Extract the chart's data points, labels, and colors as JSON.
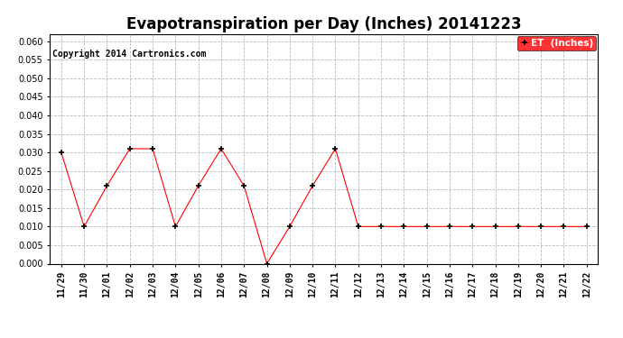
{
  "title": "Evapotranspiration per Day (Inches) 20141223",
  "copyright_text": "Copyright 2014 Cartronics.com",
  "legend_label": "ET  (Inches)",
  "legend_bg": "#ff0000",
  "legend_text_color": "#ffffff",
  "x_labels": [
    "11/29",
    "11/30",
    "12/01",
    "12/02",
    "12/03",
    "12/04",
    "12/05",
    "12/06",
    "12/07",
    "12/08",
    "12/09",
    "12/10",
    "12/11",
    "12/12",
    "12/13",
    "12/14",
    "12/15",
    "12/16",
    "12/17",
    "12/18",
    "12/19",
    "12/20",
    "12/21",
    "12/22"
  ],
  "y_values": [
    0.03,
    0.01,
    0.021,
    0.031,
    0.031,
    0.01,
    0.021,
    0.031,
    0.021,
    0.0,
    0.01,
    0.021,
    0.031,
    0.01,
    0.01,
    0.01,
    0.01,
    0.01,
    0.01,
    0.01,
    0.01,
    0.01,
    0.01,
    0.01
  ],
  "line_color": "#ff0000",
  "marker": "+",
  "marker_color": "#000000",
  "marker_size": 4,
  "ylim": [
    0.0,
    0.062
  ],
  "yticks": [
    0.0,
    0.005,
    0.01,
    0.015,
    0.02,
    0.025,
    0.03,
    0.035,
    0.04,
    0.045,
    0.05,
    0.055,
    0.06
  ],
  "grid_color": "#bbbbbb",
  "grid_style": "--",
  "bg_color": "#ffffff",
  "title_fontsize": 12,
  "axis_fontsize": 7,
  "copyright_fontsize": 7,
  "fig_width": 6.9,
  "fig_height": 3.75,
  "dpi": 100
}
